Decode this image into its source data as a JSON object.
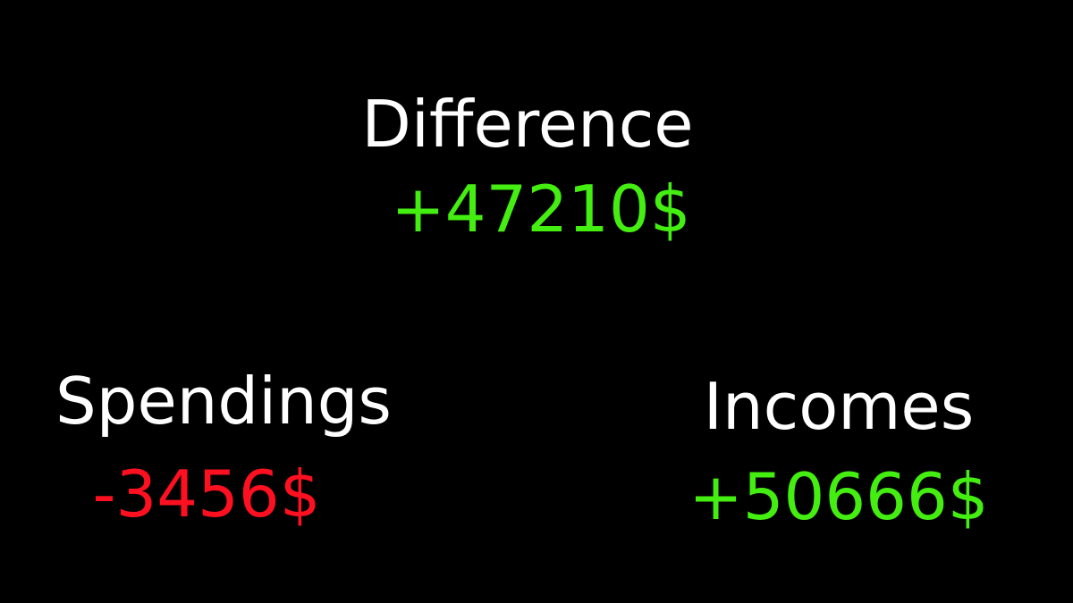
{
  "difference": {
    "label": "Difference",
    "value": "+47210$",
    "value_color": "#44ee11"
  },
  "spendings": {
    "label": "Spendings",
    "value": "-3456$",
    "value_color": "#ff1020"
  },
  "incomes": {
    "label": "Incomes",
    "value": "+50666$",
    "value_color": "#44ee11"
  },
  "theme": {
    "background": "#000000",
    "label_color": "#ffffff"
  }
}
